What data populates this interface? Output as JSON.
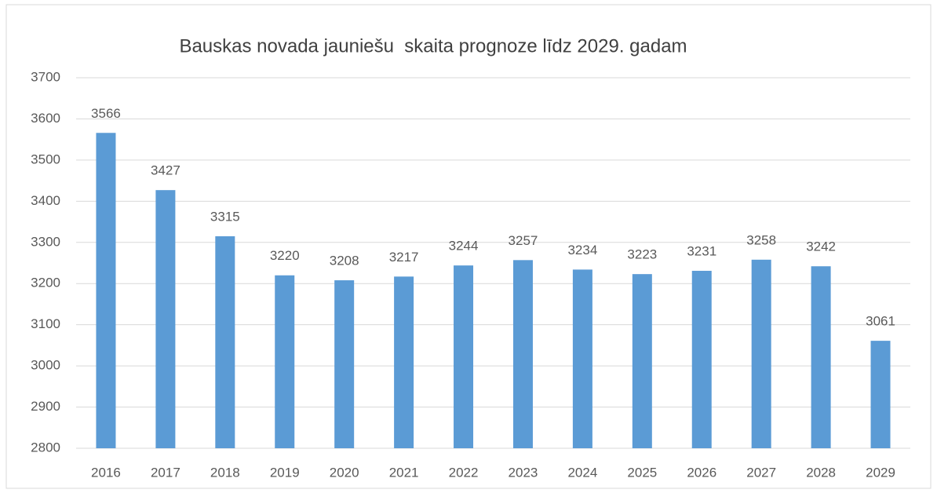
{
  "chart_data": {
    "type": "bar",
    "title": "Bauskas novada jauniešu  skaita prognoze līdz 2029. gadam",
    "categories": [
      "2016",
      "2017",
      "2018",
      "2019",
      "2020",
      "2021",
      "2022",
      "2023",
      "2024",
      "2025",
      "2026",
      "2027",
      "2028",
      "2029"
    ],
    "values": [
      3566,
      3427,
      3315,
      3220,
      3208,
      3217,
      3244,
      3257,
      3234,
      3223,
      3231,
      3258,
      3242,
      3061
    ],
    "color": "#5b9bd5",
    "ylim": [
      2800,
      3700
    ],
    "yticks": [
      2800,
      2900,
      3000,
      3100,
      3200,
      3300,
      3400,
      3500,
      3600,
      3700
    ],
    "grid": true
  }
}
